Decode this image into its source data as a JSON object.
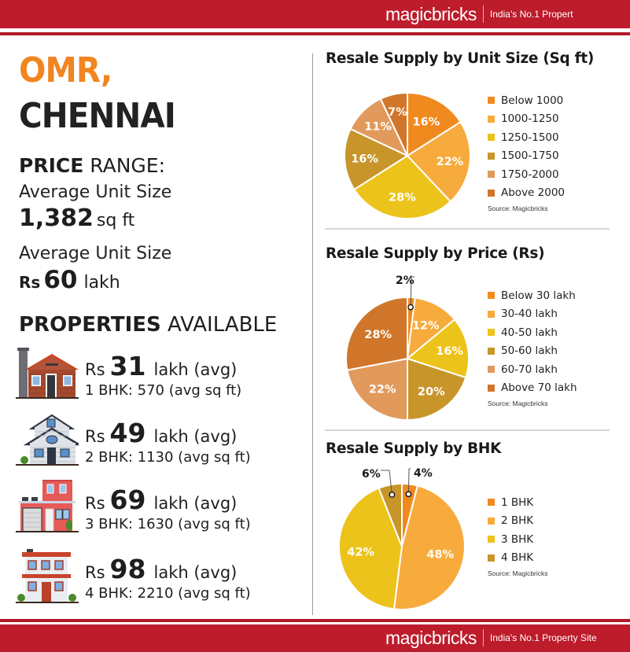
{
  "header": {
    "logo": "magicbricks",
    "tagline": "India's No.1 Propert",
    "brand_color": "#bd1c2b"
  },
  "footer": {
    "logo": "magicbricks",
    "tagline": "India's No.1 Property Site"
  },
  "location": {
    "line1": "OMR,",
    "line2": "CHENNAI",
    "accent_color": "#f08521"
  },
  "price_range": {
    "heading_bold": "PRICE",
    "heading_rest": " RANGE:",
    "unit_size_label": "Average Unit Size",
    "unit_size_value": "1,382",
    "unit_size_unit": "sq ft",
    "price_label": "Average Unit Size",
    "price_prefix": "Rs",
    "price_value": "60",
    "price_unit": "lakh"
  },
  "properties": {
    "heading_bold": "PROPERTIES",
    "heading_rest": " AVAILABLE",
    "items": [
      {
        "icon": "wooden-house-icon",
        "prefix": "Rs",
        "price": "31",
        "suffix": "lakh (avg)",
        "detail": "1 BHK: 570 (avg sq ft)"
      },
      {
        "icon": "two-storey-house-icon",
        "prefix": "Rs",
        "price": "49",
        "suffix": "lakh (avg)",
        "detail": "2 BHK: 1130 (avg sq ft)"
      },
      {
        "icon": "red-garage-house-icon",
        "prefix": "Rs",
        "price": "69",
        "suffix": "lakh (avg)",
        "detail": "3 BHK: 1630 (avg sq ft)"
      },
      {
        "icon": "apartment-building-icon",
        "prefix": "Rs",
        "price": "98",
        "suffix": "lakh (avg)",
        "detail": "4 BHK: 2210 (avg sq ft)"
      }
    ]
  },
  "chart_data": [
    {
      "type": "pie",
      "title": "Resale Supply by Unit Size (Sq ft)",
      "categories": [
        "Below 1000",
        "1000-1250",
        "1250-1500",
        "1500-1750",
        "1750-2000",
        "Above 2000"
      ],
      "values": [
        16,
        22,
        28,
        16,
        11,
        7
      ],
      "labels": [
        "16%",
        "22%",
        "28%",
        "16%",
        "11%",
        "7%"
      ],
      "colors": [
        "#f08a1e",
        "#f7ab3d",
        "#ecc31a",
        "#c8952a",
        "#e19a5c",
        "#d0762a"
      ],
      "legend_position": "right",
      "source": "Source: Magicbricks"
    },
    {
      "type": "pie",
      "title": "Resale Supply by Price (Rs)",
      "categories": [
        "Below 30 lakh",
        "30-40 lakh",
        "40-50 lakh",
        "50-60 lakh",
        "60-70 lakh",
        "Above 70 lakh"
      ],
      "values": [
        2,
        12,
        16,
        20,
        22,
        28
      ],
      "labels": [
        "2%",
        "12%",
        "16%",
        "20%",
        "22%",
        "28%"
      ],
      "colors": [
        "#f08a1e",
        "#f7ab3d",
        "#ecc31a",
        "#c8952a",
        "#e19a5c",
        "#d0762a"
      ],
      "callouts": [
        0
      ],
      "legend_position": "right",
      "source": "Source: Magicbricks"
    },
    {
      "type": "pie",
      "title": "Resale Supply by BHK",
      "categories": [
        "1 BHK",
        "2 BHK",
        "3 BHK",
        "4 BHK"
      ],
      "values": [
        4,
        48,
        42,
        6
      ],
      "labels": [
        "4%",
        "48%",
        "42%",
        "6%"
      ],
      "colors": [
        "#f08a1e",
        "#f7ab3d",
        "#ecc31a",
        "#c8952a"
      ],
      "callouts": [
        0,
        3
      ],
      "legend_position": "right",
      "source": "Source: Magicbricks"
    }
  ]
}
